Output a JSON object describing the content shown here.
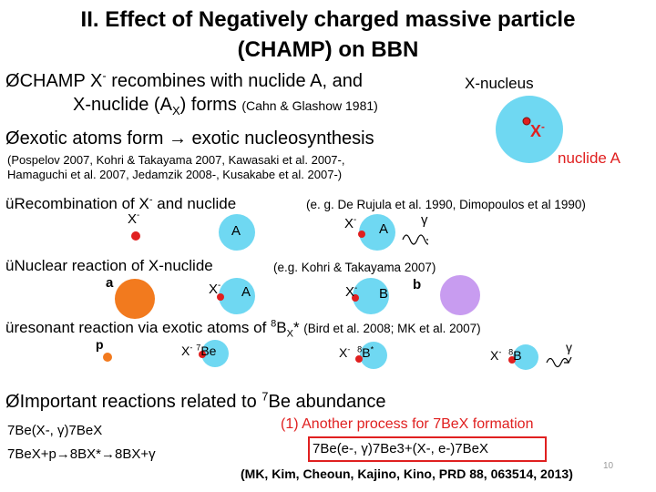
{
  "title": {
    "line1": "II. Effect of Negatively charged massive particle",
    "line2": "(CHAMP) on BBN"
  },
  "bullets": {
    "champ_recombines": {
      "marker": "Ø",
      "text_a": "CHAMP X",
      "sup": "-",
      "text_b": " recombines with nuclide A, and",
      "line2_a": "X-nuclide (A",
      "line2_sub": "X",
      "line2_b": ") forms ",
      "ref": "(Cahn & Glashow 1981)"
    },
    "exotic_atoms": {
      "marker": "Ø",
      "text": "exotic atoms form → exotic nucleosynthesis",
      "ref_line1": "(Pospelov 2007, Kohri & Takayama 2007, Kawasaki et al. 2007-,",
      "ref_line2": "Hamaguchi et al. 2007, Jedamzik 2008-, Kusakabe et al. 2007-)"
    },
    "recombination": {
      "marker": "ü",
      "text_a": "Recombination of X",
      "sup": "-",
      "text_b": " and nuclide",
      "ref": "(e. g. De Rujula et al. 1990, Dimopoulos et al 1990)"
    },
    "nuclear_reaction": {
      "marker": "ü",
      "text": "Nuclear reaction of X-nuclide",
      "ref": "(e.g. Kohri & Takayama 2007)"
    },
    "resonant": {
      "marker": "ü",
      "text_a": "resonant reaction via exotic atoms of ",
      "sup_mass": "8",
      "text_b": "B",
      "sub": "X",
      "text_c": "* ",
      "ref": "(Bird et al. 2008; MK et al. 2007)"
    },
    "important": {
      "marker": "Ø",
      "text_a": "Important reactions related to ",
      "sup": "7",
      "text_b": "Be abundance"
    }
  },
  "diagram": {
    "xnucleus_label": "X-nucleus",
    "x_minus": "X",
    "minus": "-",
    "nuclide_label": "nuclide A",
    "A": "A",
    "a": "a",
    "b": "b",
    "B": "B",
    "p": "p",
    "gamma": "γ",
    "be7_mass": "7",
    "be_symbol": "Be",
    "b8_mass": "8",
    "b_symbol": "B",
    "star": "*"
  },
  "reactions": {
    "r1": "7Be(X-, γ)7BeX",
    "r2": "7BeX+p→8BX*→8BX+γ"
  },
  "another_process": {
    "heading": "(1) Another process for 7BeX formation",
    "box": "7Be(e-, γ)7Be3+(X-, e-)7BeX"
  },
  "citation": "(MK, Kim, Cheoun, Kajino, Kino, PRD 88, 063514, 2013)",
  "page_number": "10",
  "colors": {
    "red_particle": "#e01f1f",
    "cyan": "#6fd8f2",
    "orange": "#f27a1e",
    "purple": "#c89cf0",
    "highlight_red": "#e02020"
  }
}
